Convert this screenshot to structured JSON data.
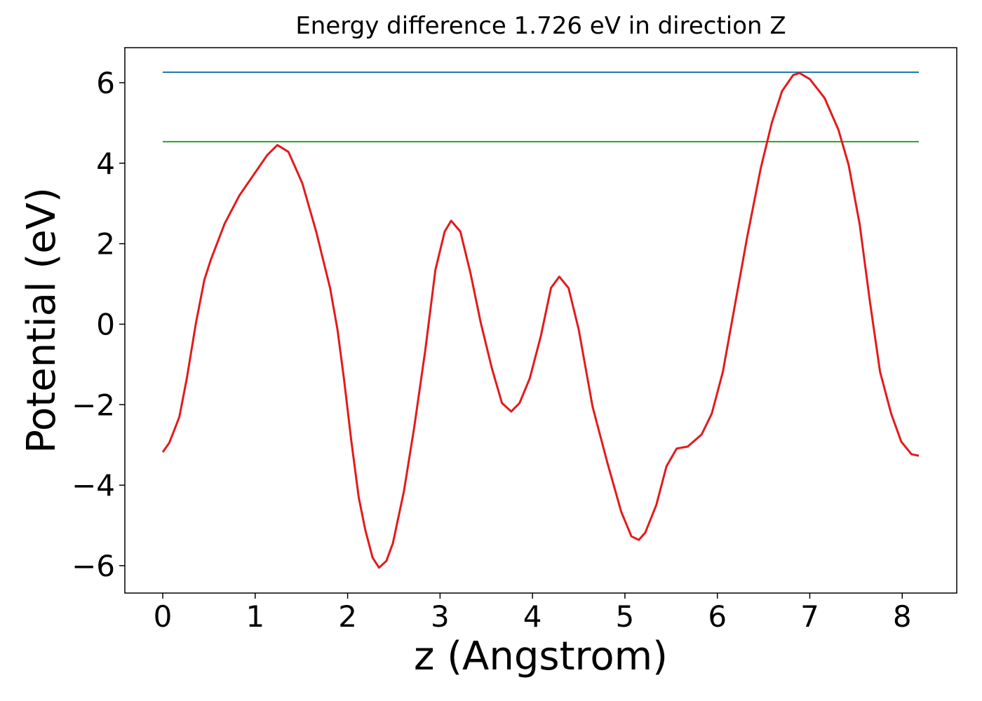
{
  "chart_data": {
    "type": "line",
    "title": "Energy difference 1.726 eV in direction Z",
    "x_label": "z (Angstrom)",
    "y_label": "Potential (eV)",
    "xlim": [
      -0.41,
      8.59
    ],
    "ylim": [
      -6.68,
      6.87
    ],
    "xticks": [
      0,
      1,
      2,
      3,
      4,
      5,
      6,
      7,
      8
    ],
    "yticks": [
      {
        "value": -6,
        "label": "−6"
      },
      {
        "value": -4,
        "label": "−4"
      },
      {
        "value": -2,
        "label": "−2"
      },
      0,
      2,
      4,
      6
    ],
    "grid": false,
    "series": [
      {
        "color": "#1f77b4",
        "x": [
          0,
          8.18
        ],
        "values": [
          6.26,
          6.26
        ]
      },
      {
        "color": "#2ca02c",
        "x": [
          0,
          8.18
        ],
        "values": [
          4.534,
          4.534
        ]
      },
      {
        "color": "#e31a1c",
        "x": [
          0,
          0.07,
          0.13,
          0.18,
          0.26,
          0.36,
          0.45,
          0.52,
          0.67,
          0.83,
          0.98,
          1.13,
          1.24,
          1.36,
          1.51,
          1.66,
          1.81,
          1.89,
          1.96,
          2.04,
          2.12,
          2.19,
          2.27,
          2.34,
          2.42,
          2.49,
          2.61,
          2.72,
          2.84,
          2.95,
          3.05,
          3.12,
          3.22,
          3.33,
          3.44,
          3.56,
          3.67,
          3.77,
          3.86,
          3.97,
          4.09,
          4.2,
          4.29,
          4.39,
          4.5,
          4.65,
          4.81,
          4.96,
          5.07,
          5.15,
          5.22,
          5.34,
          5.45,
          5.56,
          5.68,
          5.83,
          5.94,
          6.06,
          6.17,
          6.32,
          6.47,
          6.59,
          6.7,
          6.82,
          6.89,
          7.0,
          7.16,
          7.31,
          7.42,
          7.54,
          7.65,
          7.76,
          7.88,
          7.99,
          8.1,
          8.18
        ],
        "values": [
          -3.18,
          -2.95,
          -2.6,
          -2.3,
          -1.35,
          0.04,
          1.1,
          1.6,
          2.5,
          3.2,
          3.7,
          4.2,
          4.45,
          4.28,
          3.5,
          2.3,
          0.9,
          -0.13,
          -1.35,
          -2.9,
          -4.3,
          -5.1,
          -5.8,
          -6.05,
          -5.88,
          -5.44,
          -4.14,
          -2.57,
          -0.65,
          1.35,
          2.3,
          2.57,
          2.3,
          1.26,
          0.04,
          -1.09,
          -1.96,
          -2.17,
          -1.96,
          -1.35,
          -0.3,
          0.9,
          1.18,
          0.9,
          -0.13,
          -2.05,
          -3.44,
          -4.66,
          -5.27,
          -5.36,
          -5.18,
          -4.49,
          -3.53,
          -3.09,
          -3.04,
          -2.74,
          -2.22,
          -1.18,
          0.22,
          2.13,
          3.88,
          5.01,
          5.79,
          6.19,
          6.24,
          6.09,
          5.62,
          4.83,
          3.96,
          2.48,
          0.57,
          -1.18,
          -2.22,
          -2.92,
          -3.23,
          -3.27
        ]
      }
    ]
  }
}
